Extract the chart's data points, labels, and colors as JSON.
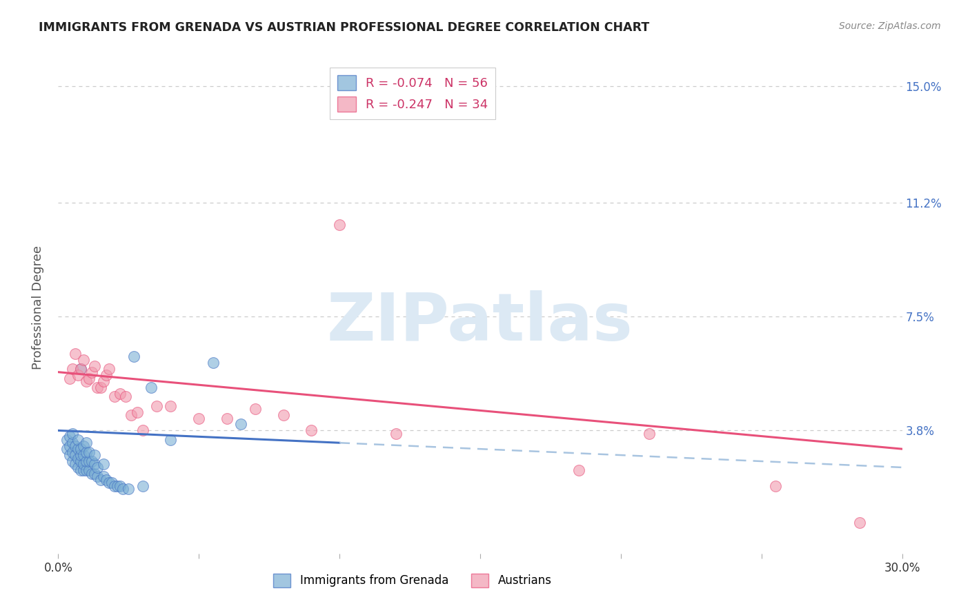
{
  "title": "IMMIGRANTS FROM GRENADA VS AUSTRIAN PROFESSIONAL DEGREE CORRELATION CHART",
  "source": "Source: ZipAtlas.com",
  "ylabel": "Professional Degree",
  "xlim": [
    0.0,
    0.3
  ],
  "ylim": [
    -0.002,
    0.158
  ],
  "yticks": [
    0.038,
    0.075,
    0.112,
    0.15
  ],
  "ytick_labels": [
    "3.8%",
    "7.5%",
    "11.2%",
    "15.0%"
  ],
  "xticks": [
    0.0,
    0.05,
    0.1,
    0.15,
    0.2,
    0.25,
    0.3
  ],
  "xtick_labels": [
    "0.0%",
    "",
    "",
    "",
    "",
    "",
    "30.0%"
  ],
  "blue_R": "-0.074",
  "blue_N": "56",
  "pink_R": "-0.247",
  "pink_N": "34",
  "blue_label": "Immigrants from Grenada",
  "pink_label": "Austrians",
  "blue_scatter_x": [
    0.003,
    0.003,
    0.004,
    0.004,
    0.004,
    0.005,
    0.005,
    0.005,
    0.005,
    0.006,
    0.006,
    0.006,
    0.007,
    0.007,
    0.007,
    0.007,
    0.008,
    0.008,
    0.008,
    0.008,
    0.008,
    0.009,
    0.009,
    0.009,
    0.009,
    0.01,
    0.01,
    0.01,
    0.01,
    0.011,
    0.011,
    0.011,
    0.012,
    0.012,
    0.013,
    0.013,
    0.013,
    0.014,
    0.014,
    0.015,
    0.016,
    0.016,
    0.017,
    0.018,
    0.019,
    0.02,
    0.021,
    0.022,
    0.023,
    0.025,
    0.027,
    0.03,
    0.033,
    0.04,
    0.055,
    0.065
  ],
  "blue_scatter_y": [
    0.032,
    0.035,
    0.03,
    0.033,
    0.036,
    0.028,
    0.031,
    0.034,
    0.037,
    0.027,
    0.03,
    0.033,
    0.026,
    0.029,
    0.032,
    0.035,
    0.025,
    0.028,
    0.03,
    0.032,
    0.058,
    0.025,
    0.027,
    0.03,
    0.033,
    0.025,
    0.028,
    0.031,
    0.034,
    0.025,
    0.028,
    0.031,
    0.024,
    0.028,
    0.024,
    0.027,
    0.03,
    0.023,
    0.026,
    0.022,
    0.023,
    0.027,
    0.022,
    0.021,
    0.021,
    0.02,
    0.02,
    0.02,
    0.019,
    0.019,
    0.062,
    0.02,
    0.052,
    0.035,
    0.06,
    0.04
  ],
  "pink_scatter_x": [
    0.004,
    0.005,
    0.006,
    0.007,
    0.008,
    0.009,
    0.01,
    0.011,
    0.012,
    0.013,
    0.014,
    0.015,
    0.016,
    0.017,
    0.018,
    0.02,
    0.022,
    0.024,
    0.026,
    0.028,
    0.03,
    0.035,
    0.04,
    0.05,
    0.06,
    0.07,
    0.08,
    0.09,
    0.1,
    0.12,
    0.185,
    0.21,
    0.255,
    0.285
  ],
  "pink_scatter_y": [
    0.055,
    0.058,
    0.063,
    0.056,
    0.058,
    0.061,
    0.054,
    0.055,
    0.057,
    0.059,
    0.052,
    0.052,
    0.054,
    0.056,
    0.058,
    0.049,
    0.05,
    0.049,
    0.043,
    0.044,
    0.038,
    0.046,
    0.046,
    0.042,
    0.042,
    0.045,
    0.043,
    0.038,
    0.105,
    0.037,
    0.025,
    0.037,
    0.02,
    0.008
  ],
  "blue_line_color": "#4472c4",
  "pink_line_color": "#e8507a",
  "dashed_line_color": "#a8c4e0",
  "scatter_blue_face": "#7bafd4",
  "scatter_blue_edge": "#4472c4",
  "scatter_pink_face": "#f09aae",
  "scatter_pink_edge": "#e8507a",
  "grid_color": "#cccccc",
  "background_color": "#ffffff",
  "title_color": "#222222",
  "ylabel_color": "#555555",
  "right_tick_color": "#4472c4",
  "source_color": "#888888",
  "watermark_color": "#dce9f4",
  "watermark_text": "ZIPatlas",
  "blue_line_x_start": 0.0,
  "blue_line_x_solid_end": 0.1,
  "blue_line_x_end": 0.3,
  "blue_line_y_start": 0.038,
  "blue_line_y_at_solid_end": 0.034,
  "blue_line_y_end": 0.026,
  "pink_line_x_start": 0.0,
  "pink_line_x_end": 0.3,
  "pink_line_y_start": 0.057,
  "pink_line_y_end": 0.032
}
